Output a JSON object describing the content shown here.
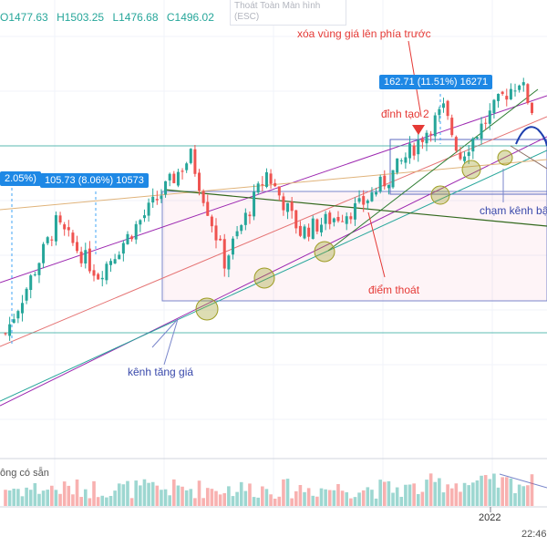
{
  "ohlc": {
    "open": "O1477.63",
    "high": "H1503.25",
    "low": "L1476.68",
    "close": "C1496.02"
  },
  "tooltip": {
    "line1": "Thoát Toàn Màn hình",
    "line2": "(ESC)"
  },
  "annotations": {
    "erase_zone": "xóa vùng giá lên phía trước",
    "peak2": "đỉnh tạo 2",
    "touch_channel": "chạm kênh bật",
    "exit_point": "điểm thoát",
    "uptrend_channel": "kênh tăng giá"
  },
  "measures": {
    "left_partial": "2.05%)",
    "left": "105.73 (8.06%) 10573",
    "right": "162.71 (11.51%) 16271"
  },
  "volume_label": "ông có sẵn",
  "time_axis": {
    "year_label": "2022",
    "clock": "22:46"
  },
  "colors": {
    "up": "#26a69a",
    "down": "#ef5350",
    "channel": "#9c27b0",
    "annotation": "#e53935",
    "highlight": "#9e9d24"
  },
  "chart_data": {
    "type": "candlestick",
    "title": "",
    "ohlc_last": {
      "open": 1477.63,
      "high": 1503.25,
      "low": 1476.68,
      "close": 1496.02
    },
    "price_legs": [
      {
        "from_index": 0,
        "to_index": 12,
        "start": 1230,
        "end": 1360
      },
      {
        "from_index": 12,
        "to_index": 22,
        "start": 1360,
        "end": 1300
      },
      {
        "from_index": 22,
        "to_index": 44,
        "start": 1300,
        "end": 1440
      },
      {
        "from_index": 44,
        "to_index": 52,
        "start": 1440,
        "end": 1315
      },
      {
        "from_index": 52,
        "to_index": 62,
        "start": 1315,
        "end": 1420
      },
      {
        "from_index": 62,
        "to_index": 70,
        "start": 1420,
        "end": 1350
      },
      {
        "from_index": 70,
        "to_index": 84,
        "start": 1350,
        "end": 1380
      },
      {
        "from_index": 84,
        "to_index": 92,
        "start": 1380,
        "end": 1420
      },
      {
        "from_index": 92,
        "to_index": 104,
        "start": 1420,
        "end": 1495
      },
      {
        "from_index": 104,
        "to_index": 108,
        "start": 1495,
        "end": 1440
      },
      {
        "from_index": 108,
        "to_index": 118,
        "start": 1440,
        "end": 1510
      },
      {
        "from_index": 118,
        "to_index": 122,
        "start": 1510,
        "end": 1530
      },
      {
        "from_index": 122,
        "to_index": 125,
        "start": 1530,
        "end": 1496
      }
    ],
    "measure_left": {
      "change": 105.73,
      "percent": 8.06,
      "value": 10573
    },
    "measure_right": {
      "change": 162.71,
      "percent": 11.51,
      "value": 16271
    },
    "x_ticks": [
      "2022"
    ]
  }
}
